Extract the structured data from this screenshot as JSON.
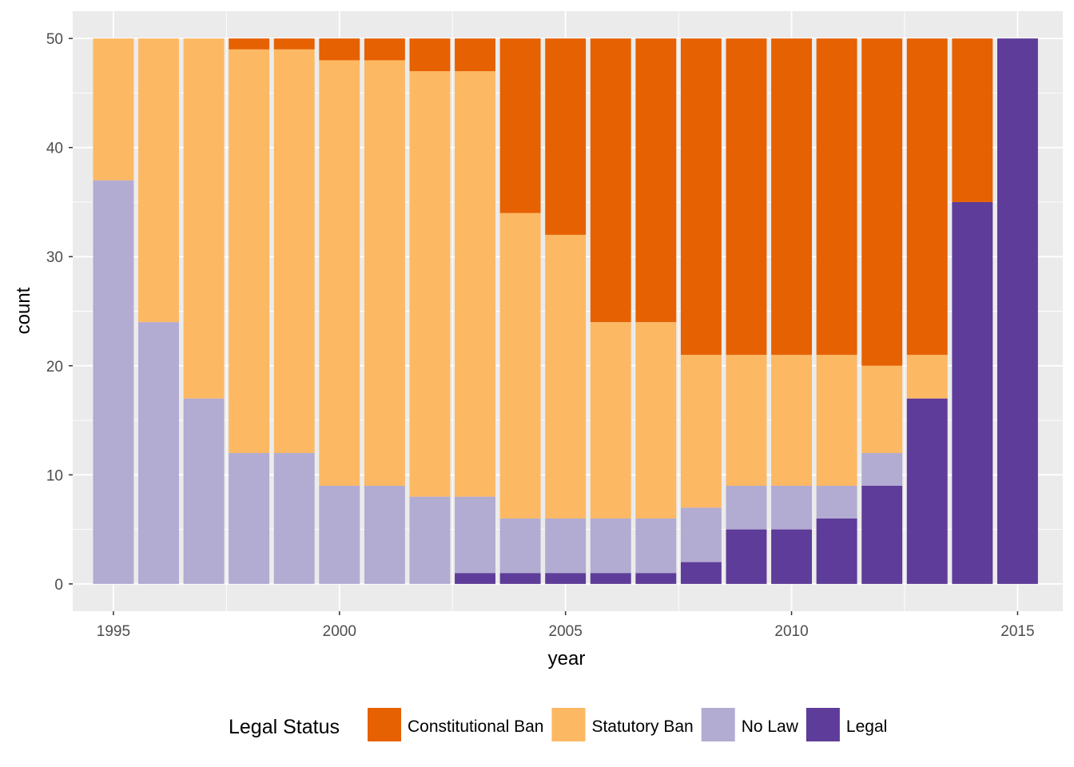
{
  "chart_data": {
    "type": "bar",
    "stacked": true,
    "categories": [
      1995,
      1996,
      1997,
      1998,
      1999,
      2000,
      2001,
      2002,
      2003,
      2004,
      2005,
      2006,
      2007,
      2008,
      2009,
      2010,
      2011,
      2012,
      2013,
      2014,
      2015
    ],
    "series": [
      {
        "name": "Legal",
        "color": "#5e3c99",
        "values": [
          0,
          0,
          0,
          0,
          0,
          0,
          0,
          0,
          1,
          1,
          1,
          1,
          1,
          2,
          5,
          5,
          6,
          9,
          17,
          35,
          50
        ]
      },
      {
        "name": "No Law",
        "color": "#b2abd2",
        "values": [
          37,
          24,
          17,
          12,
          12,
          9,
          9,
          8,
          7,
          5,
          5,
          5,
          5,
          5,
          4,
          4,
          3,
          3,
          0,
          0,
          0
        ]
      },
      {
        "name": "Statutory Ban",
        "color": "#fdb863",
        "values": [
          13,
          26,
          33,
          37,
          37,
          39,
          39,
          39,
          39,
          28,
          26,
          18,
          18,
          14,
          12,
          12,
          12,
          8,
          4,
          0,
          0
        ]
      },
      {
        "name": "Constitutional Ban",
        "color": "#e66101",
        "values": [
          0,
          0,
          0,
          1,
          1,
          2,
          2,
          3,
          3,
          16,
          18,
          26,
          26,
          29,
          29,
          29,
          29,
          30,
          29,
          15,
          0
        ]
      }
    ],
    "xlabel": "year",
    "ylabel": "count",
    "xticks": [
      1995,
      2000,
      2005,
      2010,
      2015
    ],
    "yticks": [
      0,
      10,
      20,
      30,
      40,
      50
    ],
    "xlim": [
      1994.1,
      2016.0
    ],
    "ylim": [
      -2.5,
      52.5
    ],
    "grid": true,
    "background": "#ebebeb",
    "legend": {
      "title": "Legal Status",
      "position": "bottom",
      "order": [
        "Constitutional Ban",
        "Statutory Ban",
        "No Law",
        "Legal"
      ]
    }
  }
}
